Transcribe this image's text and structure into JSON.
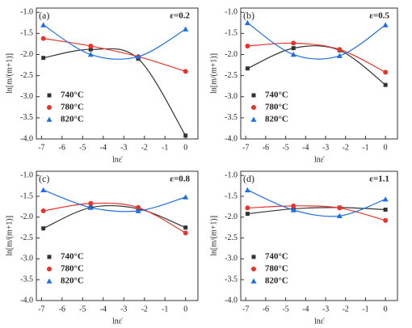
{
  "chart_data": [
    {
      "type": "line",
      "title": "(a)",
      "annotation": "ε=0.2",
      "x_label": "lnε̇",
      "y_label": "ln[m/(m+1)]",
      "x": [
        -6.91,
        -4.61,
        -2.3,
        0
      ],
      "series": [
        {
          "name": "740°C",
          "color": "#333333",
          "marker": "square",
          "values": [
            -2.08,
            -1.88,
            -2.1,
            -3.92
          ]
        },
        {
          "name": "780°C",
          "color": "#e8342b",
          "marker": "circle",
          "values": [
            -1.62,
            -1.8,
            -2.05,
            -2.4
          ]
        },
        {
          "name": "820°C",
          "color": "#1f6fe0",
          "marker": "triangle",
          "values": [
            -1.3,
            -2.0,
            -2.05,
            -1.4
          ]
        }
      ],
      "xlim": [
        -7.25,
        0.6
      ],
      "xticks": [
        -7,
        -6,
        -5,
        -4,
        -3,
        -2,
        -1,
        0
      ],
      "ylim": [
        -4,
        -0.9
      ],
      "yticks": [
        {
          "value": -4,
          "label": "-4.0"
        },
        {
          "value": -3.5,
          "label": "-3.5"
        },
        {
          "value": -3,
          "label": "-3.0"
        },
        {
          "value": -2.5,
          "label": "-2.5"
        },
        {
          "value": -2,
          "label": "-2.0"
        },
        {
          "value": -1.5,
          "label": "-1.5"
        },
        {
          "value": -1,
          "label": "-1.0"
        }
      ],
      "legend": "lower left"
    },
    {
      "type": "line",
      "title": "(b)",
      "annotation": "ε=0.5",
      "x_label": "lnε̇",
      "y_label": "ln[m/(m+1)]",
      "x": [
        -6.91,
        -4.61,
        -2.3,
        0
      ],
      "series": [
        {
          "name": "740°C",
          "color": "#333333",
          "marker": "square",
          "values": [
            -2.33,
            -1.85,
            -1.9,
            -2.72
          ]
        },
        {
          "name": "780°C",
          "color": "#e8342b",
          "marker": "circle",
          "values": [
            -1.8,
            -1.73,
            -1.88,
            -2.42
          ]
        },
        {
          "name": "820°C",
          "color": "#1f6fe0",
          "marker": "triangle",
          "values": [
            -1.25,
            -2.0,
            -2.03,
            -1.3
          ]
        }
      ],
      "xlim": [
        -7.25,
        0.6
      ],
      "xticks": [
        -7,
        -6,
        -5,
        -4,
        -3,
        -2,
        -1,
        0
      ],
      "ylim": [
        -4,
        -0.9
      ],
      "yticks": [
        {
          "value": -4,
          "label": "-4.0"
        },
        {
          "value": -3.5,
          "label": "-3.5"
        },
        {
          "value": -3,
          "label": "-3.0"
        },
        {
          "value": -2.5,
          "label": "-2.5"
        },
        {
          "value": -2,
          "label": "-2.0"
        },
        {
          "value": -1.5,
          "label": "-1.5"
        },
        {
          "value": -1,
          "label": "-1.0"
        }
      ],
      "legend": "lower left"
    },
    {
      "type": "line",
      "title": "(c)",
      "annotation": "ε=0.8",
      "x_label": "lnε̇",
      "y_label": "ln[m/(m+1)]",
      "x": [
        -6.91,
        -4.61,
        -2.3,
        0
      ],
      "series": [
        {
          "name": "740°C",
          "color": "#333333",
          "marker": "square",
          "values": [
            -2.27,
            -1.77,
            -1.8,
            -2.25
          ]
        },
        {
          "name": "780°C",
          "color": "#e8342b",
          "marker": "circle",
          "values": [
            -1.85,
            -1.67,
            -1.77,
            -2.38
          ]
        },
        {
          "name": "820°C",
          "color": "#1f6fe0",
          "marker": "triangle",
          "values": [
            -1.35,
            -1.77,
            -1.85,
            -1.52
          ]
        }
      ],
      "xlim": [
        -7.25,
        0.6
      ],
      "xticks": [
        -7,
        -6,
        -5,
        -4,
        -3,
        -2,
        -1,
        0
      ],
      "ylim": [
        -4,
        -0.9
      ],
      "yticks": [
        {
          "value": -4,
          "label": "-4.0"
        },
        {
          "value": -3.5,
          "label": "-3.5"
        },
        {
          "value": -3,
          "label": "-3.0"
        },
        {
          "value": -2.5,
          "label": "-2.5"
        },
        {
          "value": -2,
          "label": "-2.0"
        },
        {
          "value": -1.5,
          "label": "-1.5"
        },
        {
          "value": -1,
          "label": "-1.0"
        }
      ],
      "legend": "lower left"
    },
    {
      "type": "line",
      "title": "(d)",
      "annotation": "ε=1.1",
      "x_label": "lnε̇",
      "y_label": "ln[m/(m+1)]",
      "x": [
        -6.91,
        -4.61,
        -2.3,
        0
      ],
      "series": [
        {
          "name": "740°C",
          "color": "#333333",
          "marker": "square",
          "values": [
            -1.92,
            -1.8,
            -1.77,
            -1.82
          ]
        },
        {
          "name": "780°C",
          "color": "#e8342b",
          "marker": "circle",
          "values": [
            -1.78,
            -1.73,
            -1.78,
            -2.08
          ]
        },
        {
          "name": "820°C",
          "color": "#1f6fe0",
          "marker": "triangle",
          "values": [
            -1.35,
            -1.83,
            -1.97,
            -1.57
          ]
        }
      ],
      "xlim": [
        -7.25,
        0.6
      ],
      "xticks": [
        -7,
        -6,
        -5,
        -4,
        -3,
        -2,
        -1,
        0
      ],
      "ylim": [
        -4,
        -0.9
      ],
      "yticks": [
        {
          "value": -4,
          "label": "-4.0"
        },
        {
          "value": -3.5,
          "label": "-3.5"
        },
        {
          "value": -3,
          "label": "-3.0"
        },
        {
          "value": -2.5,
          "label": "-2.5"
        },
        {
          "value": -2,
          "label": "-2.0"
        },
        {
          "value": -1.5,
          "label": "-1.5"
        },
        {
          "value": -1,
          "label": "-1.0"
        }
      ],
      "legend": "lower left"
    }
  ]
}
